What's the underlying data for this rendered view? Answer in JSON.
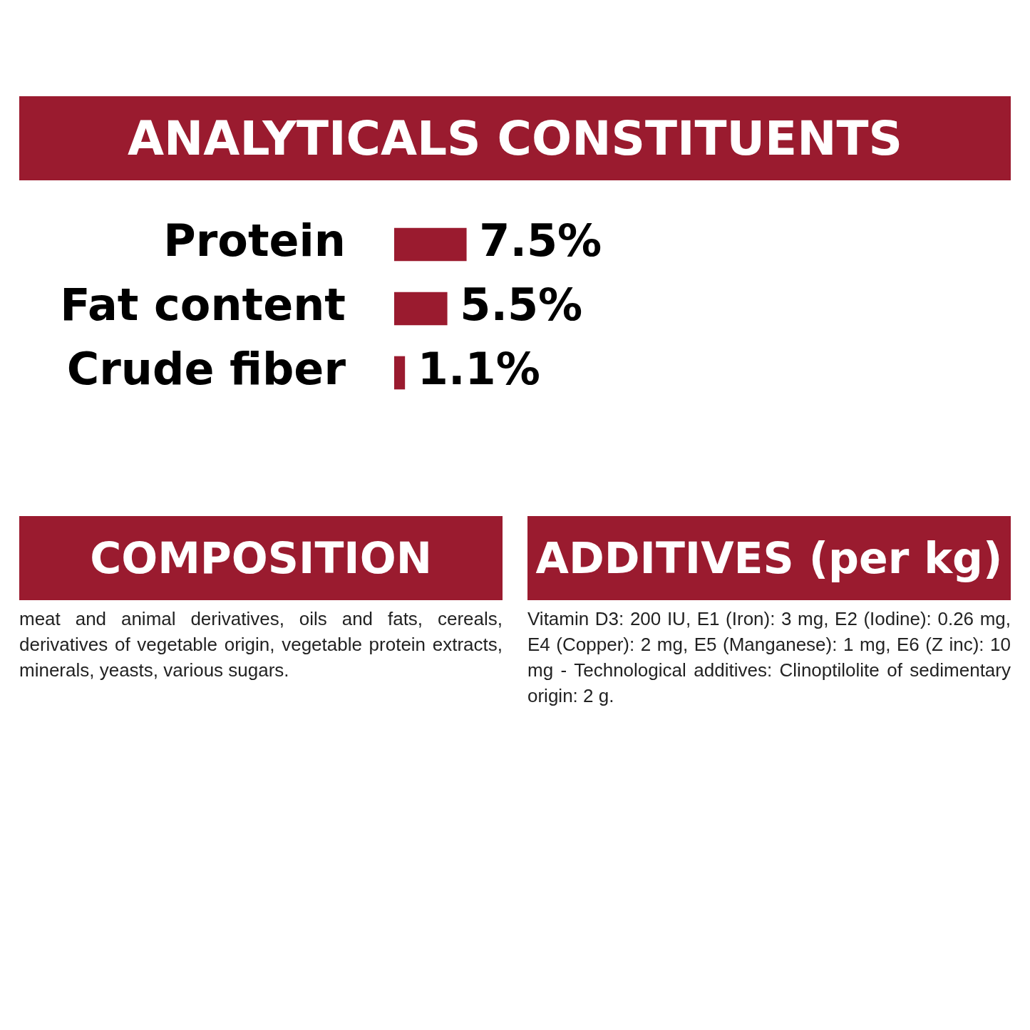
{
  "chart_data": {
    "type": "bar",
    "orientation": "horizontal",
    "title": "ANALYTICALS CONSTITUENTS",
    "categories": [
      "Protein",
      "Fat content",
      "Crude fiber"
    ],
    "values": [
      7.5,
      5.5,
      1.1
    ],
    "color": "#9a1b2f",
    "value_labels": [
      "7.5%",
      "5.5%",
      "1.1%"
    ],
    "legend": false,
    "annotations": [
      "COMPOSITION",
      "meat and animal derivatives, oils and fats, cereals, derivatives of vegetable origin, vegetable protein extracts, minerals, yeasts, various sugars.",
      "ADDITIVES (per kg)",
      "Vitamin D3: 200 IU, E1 (Iron): 3 mg, E2 (Iodine): 0.26 mg, E4 (Copper): 2 mg, E5 (Manganese): 1 mg, E6 (Z inc): 10 mg - Technological additives: Clinoptilolite of sedimentary origin: 2 g."
    ]
  }
}
